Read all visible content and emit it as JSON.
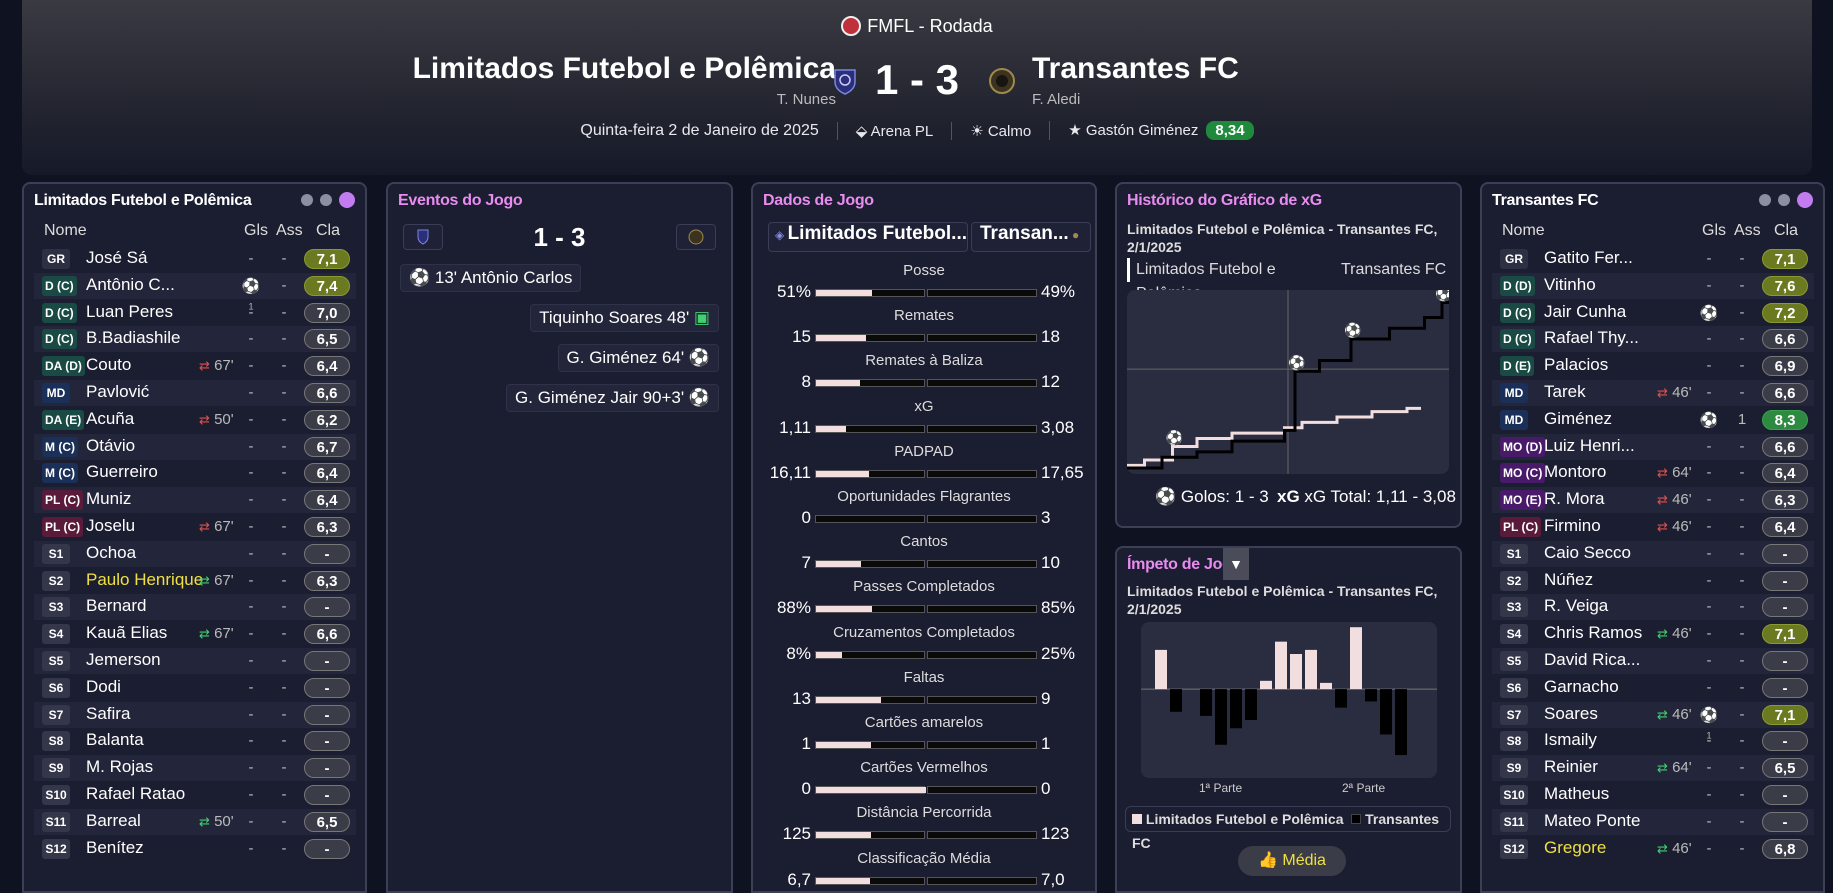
{
  "header": {
    "competition": "FMFL - Rodada",
    "home": {
      "name": "Limitados Futebol e Polêmica",
      "coach": "T. Nunes"
    },
    "away": {
      "name": "Transantes FC",
      "coach": "F. Aledi"
    },
    "score": "1 - 3",
    "date": "Quinta-feira 2 de Janeiro de 2025",
    "stadium": "Arena PL",
    "weather": "Calmo",
    "potm": "Gastón Giménez",
    "potm_rating": "8,34"
  },
  "home_panel": {
    "title": "Limitados Futebol e Polêmica",
    "cols": {
      "name": "Nome",
      "gls": "Gls",
      "ass": "Ass",
      "cla": "Cla"
    },
    "players": [
      {
        "pos": "GR",
        "name": "José Sá",
        "gls": "-",
        "ass": "-",
        "rate": "7,1",
        "rc": "g1"
      },
      {
        "pos": "D (C)",
        "name": "Antônio C...",
        "gls": "⚽₁",
        "ass": "-",
        "rate": "7,4",
        "rc": "g1"
      },
      {
        "pos": "D (C)",
        "name": "Luan Peres",
        "gls": "-",
        "ass": "-",
        "rate": "7,0"
      },
      {
        "pos": "D (C)",
        "name": "B.Badiashile",
        "gls": "-",
        "ass": "-",
        "rate": "6,5"
      },
      {
        "pos": "DA (D)",
        "name": "Couto",
        "sub": "67'",
        "subdir": "out",
        "gls": "-",
        "ass": "-",
        "rate": "6,4"
      },
      {
        "pos": "MD",
        "name": "Pavlović",
        "gls": "-",
        "ass": "-",
        "rate": "6,6"
      },
      {
        "pos": "DA (E)",
        "name": "Acuña",
        "sub": "50'",
        "subdir": "out",
        "gls": "-",
        "ass": "-",
        "rate": "6,2"
      },
      {
        "pos": "M (C)",
        "name": "Otávio",
        "gls": "-",
        "ass": "-",
        "rate": "6,7"
      },
      {
        "pos": "M (C)",
        "name": "Guerreiro",
        "gls": "-",
        "ass": "-",
        "rate": "6,4"
      },
      {
        "pos": "PL (C)",
        "name": "Muniz",
        "gls": "-",
        "ass": "-",
        "rate": "6,4"
      },
      {
        "pos": "PL (C)",
        "name": "Joselu",
        "sub": "67'",
        "subdir": "out",
        "gls": "-",
        "ass": "-",
        "rate": "6,3"
      },
      {
        "pos": "S1",
        "name": "Ochoa",
        "gls": "-",
        "ass": "-",
        "rate": "-"
      },
      {
        "pos": "S2",
        "name": "Paulo Henrique",
        "sub": "67'",
        "subdir": "in",
        "yellow": true,
        "gls": "-",
        "ass": "-",
        "rate": "6,3"
      },
      {
        "pos": "S3",
        "name": "Bernard",
        "gls": "-",
        "ass": "-",
        "rate": "-"
      },
      {
        "pos": "S4",
        "name": "Kauã Elias",
        "sub": "67'",
        "subdir": "in",
        "gls": "-",
        "ass": "-",
        "rate": "6,6"
      },
      {
        "pos": "S5",
        "name": "Jemerson",
        "gls": "-",
        "ass": "-",
        "rate": "-"
      },
      {
        "pos": "S6",
        "name": "Dodi",
        "gls": "-",
        "ass": "-",
        "rate": "-"
      },
      {
        "pos": "S7",
        "name": "Safira",
        "gls": "-",
        "ass": "-",
        "rate": "-"
      },
      {
        "pos": "S8",
        "name": "Balanta",
        "gls": "-",
        "ass": "-",
        "rate": "-"
      },
      {
        "pos": "S9",
        "name": "M. Rojas",
        "gls": "-",
        "ass": "-",
        "rate": "-"
      },
      {
        "pos": "S10",
        "name": "Rafael Ratao",
        "gls": "-",
        "ass": "-",
        "rate": "-"
      },
      {
        "pos": "S11",
        "name": "Barreal",
        "sub": "50'",
        "subdir": "in",
        "gls": "-",
        "ass": "-",
        "rate": "6,5"
      },
      {
        "pos": "S12",
        "name": "Benítez",
        "gls": "-",
        "ass": "-",
        "rate": "-"
      }
    ]
  },
  "away_panel": {
    "title": "Transantes FC",
    "cols": {
      "name": "Nome",
      "gls": "Gls",
      "ass": "Ass",
      "cla": "Cla"
    },
    "players": [
      {
        "pos": "GR",
        "name": "Gatito Fer...",
        "gls": "-",
        "ass": "-",
        "rate": "7,1",
        "rc": "g1"
      },
      {
        "pos": "D (D)",
        "name": "Vitinho",
        "gls": "-",
        "ass": "-",
        "rate": "7,6",
        "rc": "g1"
      },
      {
        "pos": "D (C)",
        "name": "Jair Cunha",
        "gls": "⚽₁",
        "ass": "-",
        "rate": "7,2",
        "rc": "g1"
      },
      {
        "pos": "D (C)",
        "name": "Rafael Thy...",
        "gls": "-",
        "ass": "-",
        "rate": "6,6"
      },
      {
        "pos": "D (E)",
        "name": "Palacios",
        "gls": "-",
        "ass": "-",
        "rate": "6,9"
      },
      {
        "pos": "MD",
        "name": "Tarek",
        "sub": "46'",
        "subdir": "out",
        "gls": "-",
        "ass": "-",
        "rate": "6,6"
      },
      {
        "pos": "MD",
        "name": "Giménez",
        "gls": "⚽₁",
        "ass": "1",
        "rate": "8,3",
        "rc": "g2"
      },
      {
        "pos": "MO (D)",
        "name": "Luiz Henri...",
        "gls": "-",
        "ass": "-",
        "rate": "6,6"
      },
      {
        "pos": "MO (C)",
        "name": "Montoro",
        "sub": "64'",
        "subdir": "out",
        "gls": "-",
        "ass": "-",
        "rate": "6,4"
      },
      {
        "pos": "MO (E)",
        "name": "R. Mora",
        "sub": "46'",
        "subdir": "out",
        "gls": "-",
        "ass": "-",
        "rate": "6,3"
      },
      {
        "pos": "PL (C)",
        "name": "Firmino",
        "sub": "46'",
        "subdir": "out",
        "gls": "-",
        "ass": "-",
        "rate": "6,4"
      },
      {
        "pos": "S1",
        "name": "Caio Secco",
        "gls": "-",
        "ass": "-",
        "rate": "-"
      },
      {
        "pos": "S2",
        "name": "Núñez",
        "gls": "-",
        "ass": "-",
        "rate": "-"
      },
      {
        "pos": "S3",
        "name": "R. Veiga",
        "gls": "-",
        "ass": "-",
        "rate": "-"
      },
      {
        "pos": "S4",
        "name": "Chris Ramos",
        "sub": "46'",
        "subdir": "in",
        "gls": "-",
        "ass": "-",
        "rate": "7,1",
        "rc": "g1"
      },
      {
        "pos": "S5",
        "name": "David Rica...",
        "gls": "-",
        "ass": "-",
        "rate": "-"
      },
      {
        "pos": "S6",
        "name": "Garnacho",
        "gls": "-",
        "ass": "-",
        "rate": "-"
      },
      {
        "pos": "S7",
        "name": "Soares",
        "sub": "46'",
        "subdir": "in",
        "gls": "⚽₁",
        "ass": "-",
        "rate": "7,1",
        "rc": "g1"
      },
      {
        "pos": "S8",
        "name": "Ismaily",
        "gls": "-",
        "ass": "-",
        "rate": "-"
      },
      {
        "pos": "S9",
        "name": "Reinier",
        "sub": "64'",
        "subdir": "in",
        "gls": "-",
        "ass": "-",
        "rate": "6,5"
      },
      {
        "pos": "S10",
        "name": "Matheus",
        "gls": "-",
        "ass": "-",
        "rate": "-"
      },
      {
        "pos": "S11",
        "name": "Mateo Ponte",
        "gls": "-",
        "ass": "-",
        "rate": "-"
      },
      {
        "pos": "S12",
        "name": "Gregore",
        "sub": "46'",
        "subdir": "in",
        "yellow": true,
        "gls": "-",
        "ass": "-",
        "rate": "6,8"
      }
    ]
  },
  "events": {
    "title": "Eventos do Jogo",
    "score": "1 - 3",
    "list": [
      {
        "side": "home",
        "text": "13' Antônio Carlos"
      },
      {
        "side": "away",
        "text": "Tiquinho Soares 48'"
      },
      {
        "side": "away",
        "text": "G. Giménez 64'"
      },
      {
        "side": "away",
        "text": "G. Giménez Jair 90+3'"
      }
    ]
  },
  "stats": {
    "title": "Dados de Jogo",
    "home_short": "Limitados Futebol...",
    "away_short": "Transan...",
    "rows": [
      {
        "label": "Posse",
        "l": "51%",
        "r": "49%",
        "lf": 0.51
      },
      {
        "label": "Remates",
        "l": "15",
        "r": "18",
        "lf": 0.45
      },
      {
        "label": "Remates à Baliza",
        "l": "8",
        "r": "12",
        "lf": 0.4
      },
      {
        "label": "xG",
        "l": "1,11",
        "r": "3,08",
        "lf": 0.27
      },
      {
        "label": "PADPAD",
        "l": "16,11",
        "r": "17,65",
        "lf": 0.48
      },
      {
        "label": "Oportunidades Flagrantes",
        "l": "0",
        "r": "3",
        "lf": 0.0
      },
      {
        "label": "Cantos",
        "l": "7",
        "r": "10",
        "lf": 0.41
      },
      {
        "label": "Passes Completados",
        "l": "88%",
        "r": "85%",
        "lf": 0.51
      },
      {
        "label": "Cruzamentos Completados",
        "l": "8%",
        "r": "25%",
        "lf": 0.24
      },
      {
        "label": "Faltas",
        "l": "13",
        "r": "9",
        "lf": 0.59
      },
      {
        "label": "Cartões amarelos",
        "l": "1",
        "r": "1",
        "lf": 0.5
      },
      {
        "label": "Cartões Vermelhos",
        "l": "0",
        "r": "0",
        "lf": 1.0
      },
      {
        "label": "Distância Percorrida",
        "l": "125",
        "r": "123",
        "lf": 0.5
      },
      {
        "label": "Classificação Média",
        "l": "6,7",
        "r": "7,0",
        "lf": 0.49
      }
    ]
  },
  "xg": {
    "title": "Histórico do Gráfico de xG",
    "subtitle": "Limitados Futebol e Polêmica - Transantes FC, 2/1/2025",
    "legend_home": "Limitados Futebol e Polêmica",
    "legend_away": "Transantes FC",
    "goals_label": "Golos: 1 - 3",
    "xg_label": "xG Total: 1,11 - 3,08",
    "chart_data": {
      "type": "line",
      "series": [
        {
          "name": "Limitados Futebol e Polêmica",
          "x": [
            0,
            5,
            13,
            20,
            30,
            45,
            50,
            60,
            70,
            80
          ],
          "values": [
            0.05,
            0.15,
            0.4,
            0.55,
            0.65,
            0.75,
            0.85,
            0.95,
            1.05,
            1.11
          ]
        },
        {
          "name": "Transantes FC",
          "x": [
            0,
            10,
            20,
            30,
            45,
            48,
            55,
            64,
            75,
            85,
            90
          ],
          "values": [
            0.0,
            0.2,
            0.3,
            0.5,
            0.7,
            1.8,
            2.0,
            2.4,
            2.6,
            2.8,
            3.08
          ]
        }
      ]
    }
  },
  "momentum": {
    "title": "Ímpeto de Jogo",
    "subtitle": "Limitados Futebol e Polêmica - Transantes FC, 2/1/2025",
    "half1": "1ª Parte",
    "half2": "2ª Parte",
    "legend_home": "Limitados Futebol e Polêmica",
    "legend_away": "Transantes FC",
    "button": "Média",
    "chart_data": {
      "type": "bar",
      "values": [
        0.95,
        -0.55,
        0,
        -0.65,
        -1.35,
        -0.95,
        -0.75,
        0.2,
        1.15,
        0.85,
        0.95,
        0.15,
        -0.45,
        1.5,
        -0.3,
        -1.1,
        -1.6
      ]
    }
  }
}
